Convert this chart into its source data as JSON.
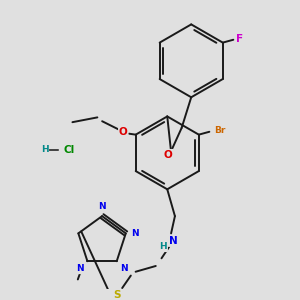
{
  "bg_color": "#e0e0e0",
  "bond_color": "#1a1a1a",
  "bond_width": 1.4,
  "atom_colors": {
    "C": "#1a1a1a",
    "N": "#0000ee",
    "O": "#dd0000",
    "S": "#bbaa00",
    "Br": "#cc6600",
    "F": "#cc00cc",
    "H": "#008888",
    "Cl": "#008800"
  },
  "fs": 6.5,
  "fs_small": 5.5
}
